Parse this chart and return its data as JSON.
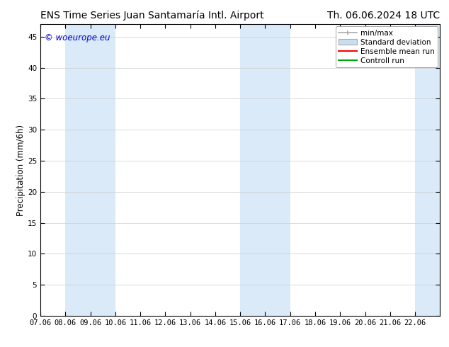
{
  "title_left": "ENS Time Series Juan Santamaría Intl. Airport",
  "title_right": "Th. 06.06.2024 18 UTC",
  "ylabel": "Precipitation (mm/6h)",
  "xlim": [
    7.06,
    23.06
  ],
  "ylim": [
    0,
    47
  ],
  "yticks": [
    0,
    5,
    10,
    15,
    20,
    25,
    30,
    35,
    40,
    45
  ],
  "xticks": [
    7.06,
    8.06,
    9.06,
    10.06,
    11.06,
    12.06,
    13.06,
    14.06,
    15.06,
    16.06,
    17.06,
    18.06,
    19.06,
    20.06,
    21.06,
    22.06
  ],
  "xtick_labels": [
    "07.06",
    "08.06",
    "09.06",
    "10.06",
    "11.06",
    "12.06",
    "13.06",
    "14.06",
    "15.06",
    "16.06",
    "17.06",
    "18.06",
    "19.06",
    "20.06",
    "21.06",
    "22.06"
  ],
  "watermark": "© woeurope.eu",
  "watermark_color": "#0000cc",
  "bg_color": "#ffffff",
  "plot_bg_color": "#ffffff",
  "shaded_regions": [
    {
      "xmin": 8.06,
      "xmax": 10.06,
      "color": "#daeaf8"
    },
    {
      "xmin": 15.06,
      "xmax": 17.06,
      "color": "#daeaf8"
    },
    {
      "xmin": 22.06,
      "xmax": 23.5,
      "color": "#daeaf8"
    }
  ],
  "legend_minmax_color": "#aaaaaa",
  "legend_std_color": "#c8dff0",
  "legend_ens_color": "#ff0000",
  "legend_ctrl_color": "#00aa00",
  "title_fontsize": 10,
  "tick_fontsize": 7.5,
  "ylabel_fontsize": 8.5,
  "watermark_fontsize": 8.5,
  "legend_fontsize": 7.5
}
